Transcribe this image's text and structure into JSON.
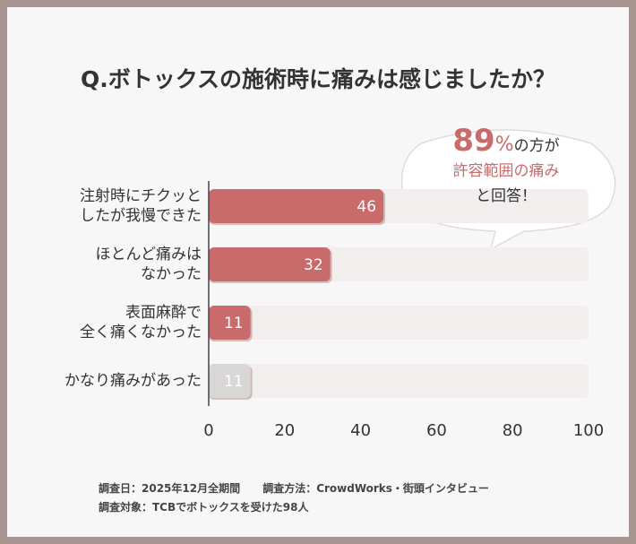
{
  "chart_data": {
    "type": "bar",
    "orientation": "horizontal",
    "title": "Q.ボトックスの施術時に痛みは感じましたか？",
    "categories": [
      "注射時にチクッと\nしたが我慢できた",
      "ほとんど痛みは\nなかった",
      "表面麻酔で\n全く痛くなかった",
      "かなり痛みがあった"
    ],
    "values": [
      46,
      32,
      11,
      11
    ],
    "colors": [
      "#c96a6b",
      "#c96a6b",
      "#c96a6b",
      "#d9d6d6"
    ],
    "track_color": "#f1eeed",
    "xlim": [
      0,
      100
    ],
    "xticks": [
      0,
      20,
      40,
      60,
      80,
      100
    ],
    "callout": {
      "number": "89",
      "unit": "%",
      "line1_rest": "の方が",
      "line2": "許容範囲の痛み",
      "line3": "と回答！"
    },
    "footnotes": [
      "調査日：2025年12月全期間",
      "調査方法：CrowdWorks・街頭インタビュー",
      "調査対象：TCBでボトックスを受けた98人"
    ]
  }
}
